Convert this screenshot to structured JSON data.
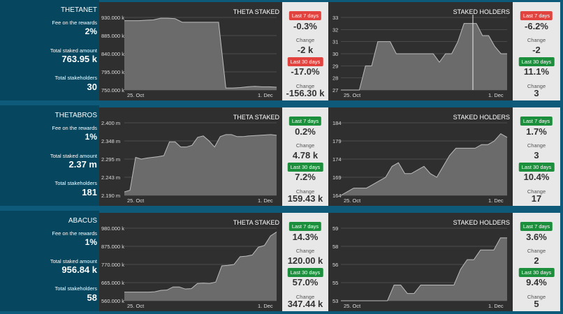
{
  "colors": {
    "background": "#0e5a7a",
    "info_panel": "#06465f",
    "chart_panel": "#2f2f2f",
    "stats_panel": "#e8e8e8",
    "badge_red": "#e2433e",
    "badge_green": "#1c8f3c"
  },
  "labels": {
    "fee": "Fee on the rewards",
    "total_staked": "Total staked amount",
    "stakeholders": "Total stakeholders",
    "change": "Change",
    "last7": "Last 7 days",
    "last30": "Last 30 days",
    "theta_staked": "THETA STAKED",
    "staked_holders": "STAKED HOLDERS"
  },
  "rows": [
    {
      "name": "THETANET",
      "fee": "2%",
      "total_staked": "763.95 k",
      "stakeholders": "30",
      "theta_stats": {
        "p7": "-0.3%",
        "c7": "-2 k",
        "p30": "-17.0%",
        "c30": "-156.30 k",
        "c7color": "red",
        "c30color": "red"
      },
      "holder_stats": {
        "p7": "-6.2%",
        "c7": "-2",
        "p30": "11.1%",
        "c30": "3",
        "c7color": "red",
        "c30color": "green"
      }
    },
    {
      "name": "THETABROS",
      "fee": "1%",
      "total_staked": "2.37 m",
      "stakeholders": "181",
      "theta_stats": {
        "p7": "0.2%",
        "c7": "4.78 k",
        "p30": "7.2%",
        "c30": "159.43 k",
        "c7color": "green",
        "c30color": "green"
      },
      "holder_stats": {
        "p7": "1.7%",
        "c7": "3",
        "p30": "10.4%",
        "c30": "17",
        "c7color": "green",
        "c30color": "green"
      }
    },
    {
      "name": "ABACUS",
      "fee": "1%",
      "total_staked": "956.84 k",
      "stakeholders": "58",
      "theta_stats": {
        "p7": "14.3%",
        "c7": "120.00 k",
        "p30": "57.0%",
        "c30": "347.44 k",
        "c7color": "green",
        "c30color": "green"
      },
      "holder_stats": {
        "p7": "3.6%",
        "c7": "2",
        "p30": "9.4%",
        "c30": "5",
        "c7color": "green",
        "c30color": "green"
      }
    }
  ],
  "chart_data": [
    {
      "type": "area",
      "title": "THETA STAKED",
      "x_ticks": [
        "25. Oct",
        "1. Dec"
      ],
      "y_ticks": [
        "930.000 k",
        "885.000 k",
        "840.000 k",
        "795.000 k",
        "750.000 k"
      ],
      "ylim": [
        750000,
        930000
      ],
      "values": [
        922000,
        922000,
        922000,
        923000,
        924000,
        928000,
        928000,
        927000,
        918000,
        918000,
        918000,
        918000,
        918000,
        918000,
        755000,
        755000,
        756000,
        758000,
        759000,
        758000,
        758000,
        757000
      ]
    },
    {
      "type": "area",
      "title": "STAKED HOLDERS",
      "x_ticks": [
        "25. Oct",
        "1. Dec"
      ],
      "y_ticks": [
        "33",
        "32",
        "31",
        "30",
        "29",
        "28",
        "27"
      ],
      "ylim": [
        27,
        33
      ],
      "values": [
        27,
        27,
        27,
        27,
        29,
        29,
        31,
        31,
        31,
        30,
        30,
        30,
        30,
        30,
        30,
        30,
        29.3,
        30,
        30,
        31,
        32.5,
        32.5,
        32.5,
        31.5,
        31.5,
        30.6,
        30,
        30
      ]
    },
    {
      "type": "area",
      "title": "THETA STAKED",
      "x_ticks": [
        "25. Oct",
        "1. Dec"
      ],
      "y_ticks": [
        "2.400 m",
        "2.348 m",
        "2.295 m",
        "2.243 m",
        "2.190 m"
      ],
      "ylim": [
        2190000,
        2400000
      ],
      "values": [
        2200000,
        2205000,
        2300000,
        2295000,
        2298000,
        2300000,
        2302000,
        2305000,
        2345000,
        2345000,
        2330000,
        2330000,
        2335000,
        2358000,
        2362000,
        2348000,
        2330000,
        2360000,
        2366000,
        2366000,
        2360000,
        2360000,
        2362000,
        2363000,
        2364000,
        2365000,
        2366000,
        2364000
      ]
    },
    {
      "type": "area",
      "title": "STAKED HOLDERS",
      "x_ticks": [
        "25. Oct",
        "1. Dec"
      ],
      "y_ticks": [
        "184",
        "179",
        "174",
        "169",
        "164"
      ],
      "ylim": [
        164,
        184
      ],
      "values": [
        164,
        165,
        166,
        166,
        166,
        167,
        168,
        169,
        172,
        173,
        170,
        170,
        171,
        172,
        170,
        169,
        172,
        175,
        177,
        177,
        177,
        177,
        178,
        178,
        179,
        181,
        180
      ]
    },
    {
      "type": "area",
      "title": "THETA STAKED",
      "x_ticks": [
        "25. Oct",
        "1. Dec"
      ],
      "y_ticks": [
        "980.000 k",
        "875.000 k",
        "770.000 k",
        "665.000 k",
        "560.000 k"
      ],
      "ylim": [
        560000,
        980000
      ],
      "values": [
        610000,
        610000,
        610000,
        610000,
        610000,
        612000,
        620000,
        622000,
        640000,
        640000,
        628000,
        630000,
        660000,
        662000,
        660000,
        668000,
        762000,
        765000,
        770000,
        815000,
        818000,
        825000,
        870000,
        880000,
        935000,
        958000
      ]
    },
    {
      "type": "area",
      "title": "STAKED HOLDERS",
      "x_ticks": [
        "25. Oct",
        "1. Dec"
      ],
      "y_ticks": [
        "59",
        "58",
        "56",
        "55",
        "53"
      ],
      "ylim": [
        53,
        59
      ],
      "values": [
        53,
        53,
        53,
        53,
        53,
        53,
        53,
        53,
        54.3,
        54.3,
        53.6,
        53.6,
        54.3,
        54.3,
        54.3,
        54.3,
        54.3,
        54.3,
        55.6,
        56.4,
        56.4,
        57.2,
        57.2,
        57.2,
        58.2,
        58.2
      ]
    }
  ]
}
